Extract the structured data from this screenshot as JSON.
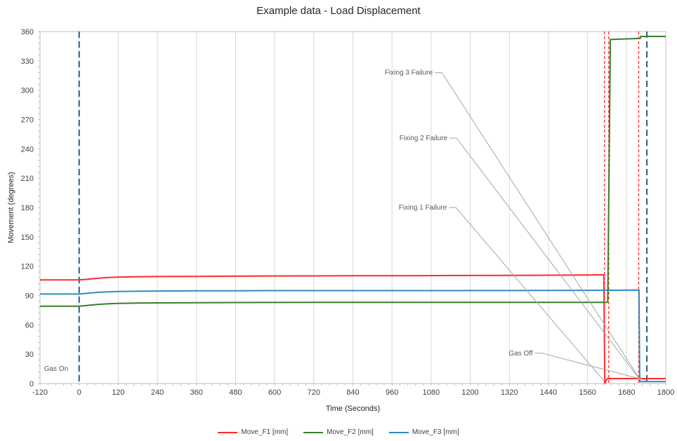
{
  "chart_data": {
    "type": "line",
    "title": "Example data - Load Displacement",
    "xlabel": "Time (Seconds)",
    "ylabel": "Movement (degrees)",
    "xlim": [
      -120,
      1800
    ],
    "ylim": [
      0,
      360
    ],
    "x_ticks": [
      -120,
      0,
      120,
      240,
      360,
      480,
      600,
      720,
      840,
      960,
      1080,
      1200,
      1320,
      1440,
      1560,
      1680,
      1800
    ],
    "y_ticks": [
      0,
      30,
      60,
      90,
      120,
      150,
      180,
      210,
      240,
      270,
      300,
      330,
      360
    ],
    "grid": "vertical",
    "legend_position": "bottom",
    "series": [
      {
        "name": "Move_F1 [mm]",
        "color": "#ff2a2a",
        "x": [
          -120,
          0,
          30,
          60,
          90,
          120,
          180,
          240,
          360,
          480,
          600,
          720,
          840,
          960,
          1080,
          1200,
          1320,
          1440,
          1560,
          1610,
          1613,
          1620,
          1720,
          1800
        ],
        "y": [
          106,
          106,
          106.8,
          107.7,
          108.4,
          108.8,
          109.2,
          109.4,
          109.6,
          109.8,
          110,
          110.1,
          110.2,
          110.3,
          110.4,
          110.5,
          110.6,
          110.8,
          111,
          111.2,
          0,
          5,
          5,
          5
        ]
      },
      {
        "name": "Move_F2 [mm]",
        "color": "#3a7d2c",
        "x": [
          -120,
          0,
          30,
          60,
          90,
          120,
          180,
          240,
          360,
          480,
          600,
          720,
          840,
          960,
          1080,
          1200,
          1320,
          1440,
          1560,
          1620,
          1622,
          1630,
          1635,
          1722,
          1723,
          1800
        ],
        "y": [
          79,
          79,
          80,
          81,
          81.6,
          82,
          82.3,
          82.5,
          82.7,
          82.8,
          82.9,
          83,
          83,
          83,
          83,
          83,
          83,
          83,
          83,
          83,
          84,
          352,
          352,
          353,
          355,
          355
        ]
      },
      {
        "name": "Move_F3 [mm]",
        "color": "#2e8bc0",
        "x": [
          -120,
          0,
          30,
          60,
          90,
          120,
          180,
          240,
          360,
          480,
          600,
          720,
          840,
          960,
          1080,
          1200,
          1320,
          1440,
          1560,
          1640,
          1718,
          1720,
          1730,
          1800
        ],
        "y": [
          91.5,
          91.5,
          92.5,
          93.3,
          93.8,
          94.1,
          94.4,
          94.6,
          94.8,
          94.9,
          95,
          95,
          95,
          95,
          95,
          95.1,
          95.1,
          95.2,
          95.3,
          95.4,
          95.5,
          2,
          2,
          2
        ]
      }
    ],
    "vertical_markers": [
      {
        "x": 0,
        "color": "#1f5f8b",
        "style": "long-dash",
        "label": "Gas On"
      },
      {
        "x": 1612,
        "color": "#ff2a2a",
        "style": "dash"
      },
      {
        "x": 1625,
        "color": "#ff2a2a",
        "style": "dash"
      },
      {
        "x": 1717,
        "color": "#ff2a2a",
        "style": "dash"
      },
      {
        "x": 1742,
        "color": "#1f5f8b",
        "style": "long-dash"
      }
    ],
    "annotations": [
      {
        "text": "Fixing 3 Failure",
        "label_at": [
          1085,
          318
        ],
        "points_to": [
          1725,
          2
        ]
      },
      {
        "text": "Fixing 2 Failure",
        "label_at": [
          1130,
          251
        ],
        "points_to": [
          1725,
          2
        ]
      },
      {
        "text": "Fixing 1 Failure",
        "label_at": [
          1128,
          180
        ],
        "points_to": [
          1612,
          2
        ]
      },
      {
        "text": "Gas Off",
        "label_at": [
          1392,
          31
        ],
        "points_to": [
          1742,
          3
        ]
      }
    ]
  }
}
